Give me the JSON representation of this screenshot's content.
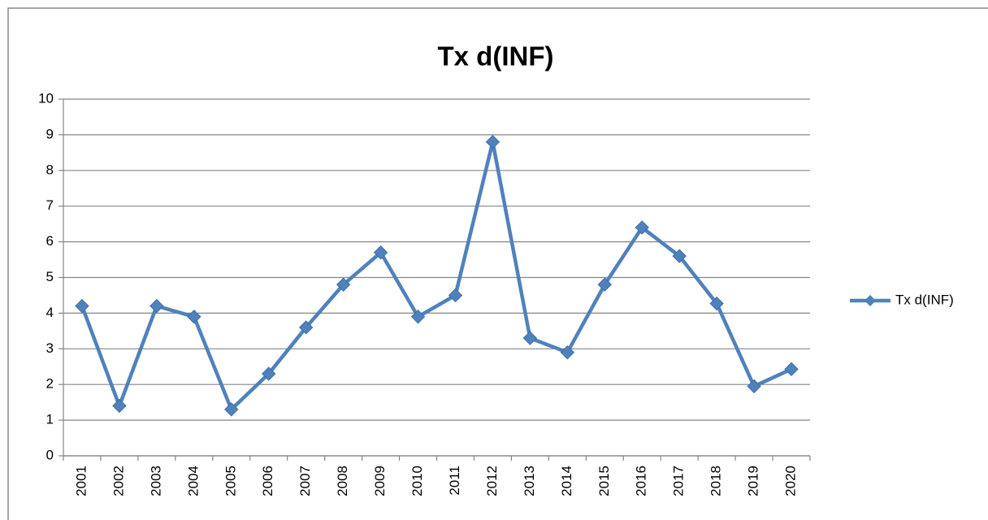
{
  "chart_data": {
    "type": "line",
    "title": "Tx d(INF)",
    "categories": [
      "2001",
      "2002",
      "2003",
      "2004",
      "2005",
      "2006",
      "2007",
      "2008",
      "2009",
      "2010",
      "2011",
      "2012",
      "2013",
      "2014",
      "2015",
      "2016",
      "2017",
      "2018",
      "2019",
      "2020"
    ],
    "series": [
      {
        "name": "Tx d(INF)",
        "color": "#4f81bd",
        "values": [
          4.2,
          1.4,
          4.2,
          3.9,
          1.3,
          2.3,
          3.6,
          4.8,
          5.7,
          3.9,
          4.5,
          8.8,
          3.3,
          2.9,
          4.8,
          6.4,
          5.6,
          4.27,
          1.95,
          2.43
        ]
      }
    ],
    "ylim": [
      0,
      10
    ],
    "yticks": [
      0,
      1,
      2,
      3,
      4,
      5,
      6,
      7,
      8,
      9,
      10
    ],
    "grid": true,
    "legend": "right"
  }
}
